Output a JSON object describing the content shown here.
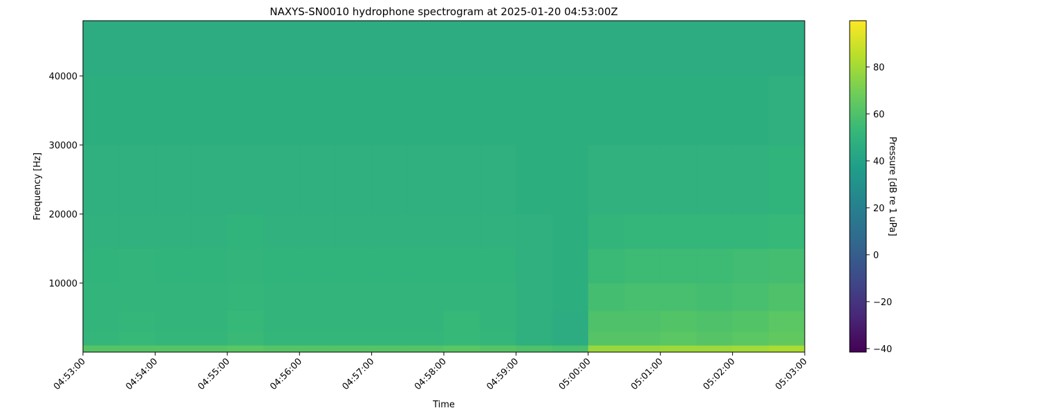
{
  "chart_data": {
    "type": "heatmap",
    "title": "NAXYS-SN0010 hydrophone spectrogram at 2025-01-20 04:53:00Z",
    "xlabel": "Time",
    "ylabel": "Frequency [Hz]",
    "colorbar_label": "Pressure [dB re 1 uPa]",
    "colormap": "viridis",
    "xlim": [
      "04:53:00",
      "05:03:00"
    ],
    "ylim": [
      0,
      48000
    ],
    "clim": [
      -41.5,
      99.7
    ],
    "x_ticks": [
      "04:53:00",
      "04:54:00",
      "04:55:00",
      "04:56:00",
      "04:57:00",
      "04:58:00",
      "04:59:00",
      "05:00:00",
      "05:01:00",
      "05:02:00",
      "05:03:00"
    ],
    "y_ticks": [
      10000,
      20000,
      30000,
      40000
    ],
    "colorbar_ticks": [
      -40,
      -20,
      0,
      20,
      40,
      60,
      80
    ],
    "time_bins_start": [
      "04:53:00",
      "04:53:30",
      "04:54:00",
      "04:54:30",
      "04:55:00",
      "04:55:30",
      "04:56:00",
      "04:56:30",
      "04:57:00",
      "04:57:30",
      "04:58:00",
      "04:58:30",
      "04:59:00",
      "04:59:30",
      "05:00:00",
      "05:00:30",
      "05:01:00",
      "05:01:30",
      "05:02:00",
      "05:02:30"
    ],
    "frequency_band_edges": [
      0,
      1000,
      3000,
      6000,
      10000,
      15000,
      20000,
      30000,
      40000,
      48000
    ],
    "values_db": [
      [
        62,
        62,
        62,
        62,
        63,
        62,
        62,
        62,
        62,
        62,
        63,
        62,
        60,
        58,
        78,
        78,
        79,
        79,
        80,
        82
      ],
      [
        52,
        53,
        52,
        52,
        54,
        52,
        52,
        52,
        52,
        52,
        53,
        52,
        48,
        46,
        62,
        62,
        63,
        62,
        63,
        65
      ],
      [
        51,
        52,
        51,
        51,
        53,
        51,
        51,
        51,
        51,
        51,
        53,
        51,
        48,
        46,
        60,
        60,
        61,
        60,
        61,
        63
      ],
      [
        51,
        51,
        51,
        51,
        52,
        51,
        51,
        51,
        51,
        51,
        51,
        51,
        48,
        47,
        57,
        58,
        58,
        57,
        58,
        60
      ],
      [
        50,
        51,
        50,
        50,
        51,
        50,
        50,
        50,
        50,
        50,
        50,
        50,
        48,
        47,
        54,
        55,
        55,
        55,
        56,
        57
      ],
      [
        49,
        49,
        49,
        49,
        50,
        49,
        49,
        49,
        49,
        49,
        49,
        49,
        48,
        47,
        51,
        52,
        52,
        52,
        52,
        53
      ],
      [
        48,
        48,
        48,
        48,
        48,
        48,
        48,
        48,
        48,
        48,
        48,
        48,
        47,
        47,
        49,
        49,
        49,
        49,
        49,
        50
      ],
      [
        47,
        47,
        47,
        47,
        47,
        47,
        47,
        47,
        47,
        47,
        47,
        47,
        47,
        47,
        47,
        47,
        47,
        47,
        47,
        48
      ],
      [
        46,
        46,
        46,
        46,
        46,
        46,
        46,
        46,
        46,
        46,
        46,
        46,
        46,
        46,
        46,
        46,
        46,
        46,
        46,
        46
      ]
    ]
  }
}
